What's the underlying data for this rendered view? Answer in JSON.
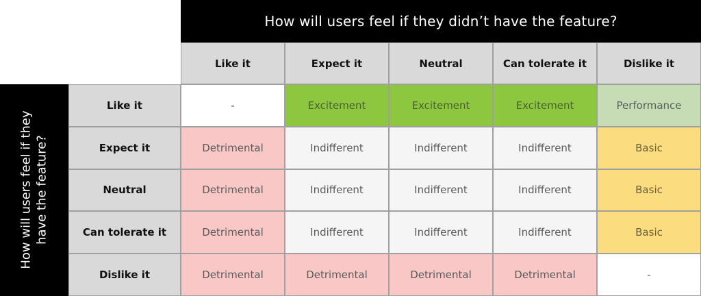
{
  "colors": {
    "header_black": "#000000",
    "header_gray": "#d9d9d9",
    "excitement": "#8dc63f",
    "performance": "#c6dcb4",
    "indifferent": "#f5f5f5",
    "detrimental": "#f9c8c6",
    "basic": "#fbdc7f",
    "cell_text": "#595959",
    "border": "#a0a0a0"
  },
  "top_axis": {
    "title": "How will users feel if they didn’t have the feature?"
  },
  "left_axis": {
    "title_line1": "How will users feel if they",
    "title_line2": "have the feature?"
  },
  "columns": [
    "Like it",
    "Expect it",
    "Neutral",
    "Can tolerate it",
    "Dislike it"
  ],
  "rows": [
    {
      "header": "Like it",
      "cells": [
        {
          "label": "-",
          "type": "empty"
        },
        {
          "label": "Excitement",
          "type": "excitement"
        },
        {
          "label": "Excitement",
          "type": "excitement"
        },
        {
          "label": "Excitement",
          "type": "excitement"
        },
        {
          "label": "Performance",
          "type": "performance"
        }
      ]
    },
    {
      "header": "Expect it",
      "cells": [
        {
          "label": "Detrimental",
          "type": "detrimental"
        },
        {
          "label": "Indifferent",
          "type": "indifferent"
        },
        {
          "label": "Indifferent",
          "type": "indifferent"
        },
        {
          "label": "Indifferent",
          "type": "indifferent"
        },
        {
          "label": "Basic",
          "type": "basic"
        }
      ]
    },
    {
      "header": "Neutral",
      "cells": [
        {
          "label": "Detrimental",
          "type": "detrimental"
        },
        {
          "label": "Indifferent",
          "type": "indifferent"
        },
        {
          "label": "Indifferent",
          "type": "indifferent"
        },
        {
          "label": "Indifferent",
          "type": "indifferent"
        },
        {
          "label": "Basic",
          "type": "basic"
        }
      ]
    },
    {
      "header": "Can tolerate it",
      "cells": [
        {
          "label": "Detrimental",
          "type": "detrimental"
        },
        {
          "label": "Indifferent",
          "type": "indifferent"
        },
        {
          "label": "Indifferent",
          "type": "indifferent"
        },
        {
          "label": "Indifferent",
          "type": "indifferent"
        },
        {
          "label": "Basic",
          "type": "basic"
        }
      ]
    },
    {
      "header": "Dislike it",
      "cells": [
        {
          "label": "Detrimental",
          "type": "detrimental"
        },
        {
          "label": "Detrimental",
          "type": "detrimental"
        },
        {
          "label": "Detrimental",
          "type": "detrimental"
        },
        {
          "label": "Detrimental",
          "type": "detrimental"
        },
        {
          "label": "-",
          "type": "empty"
        }
      ]
    }
  ]
}
